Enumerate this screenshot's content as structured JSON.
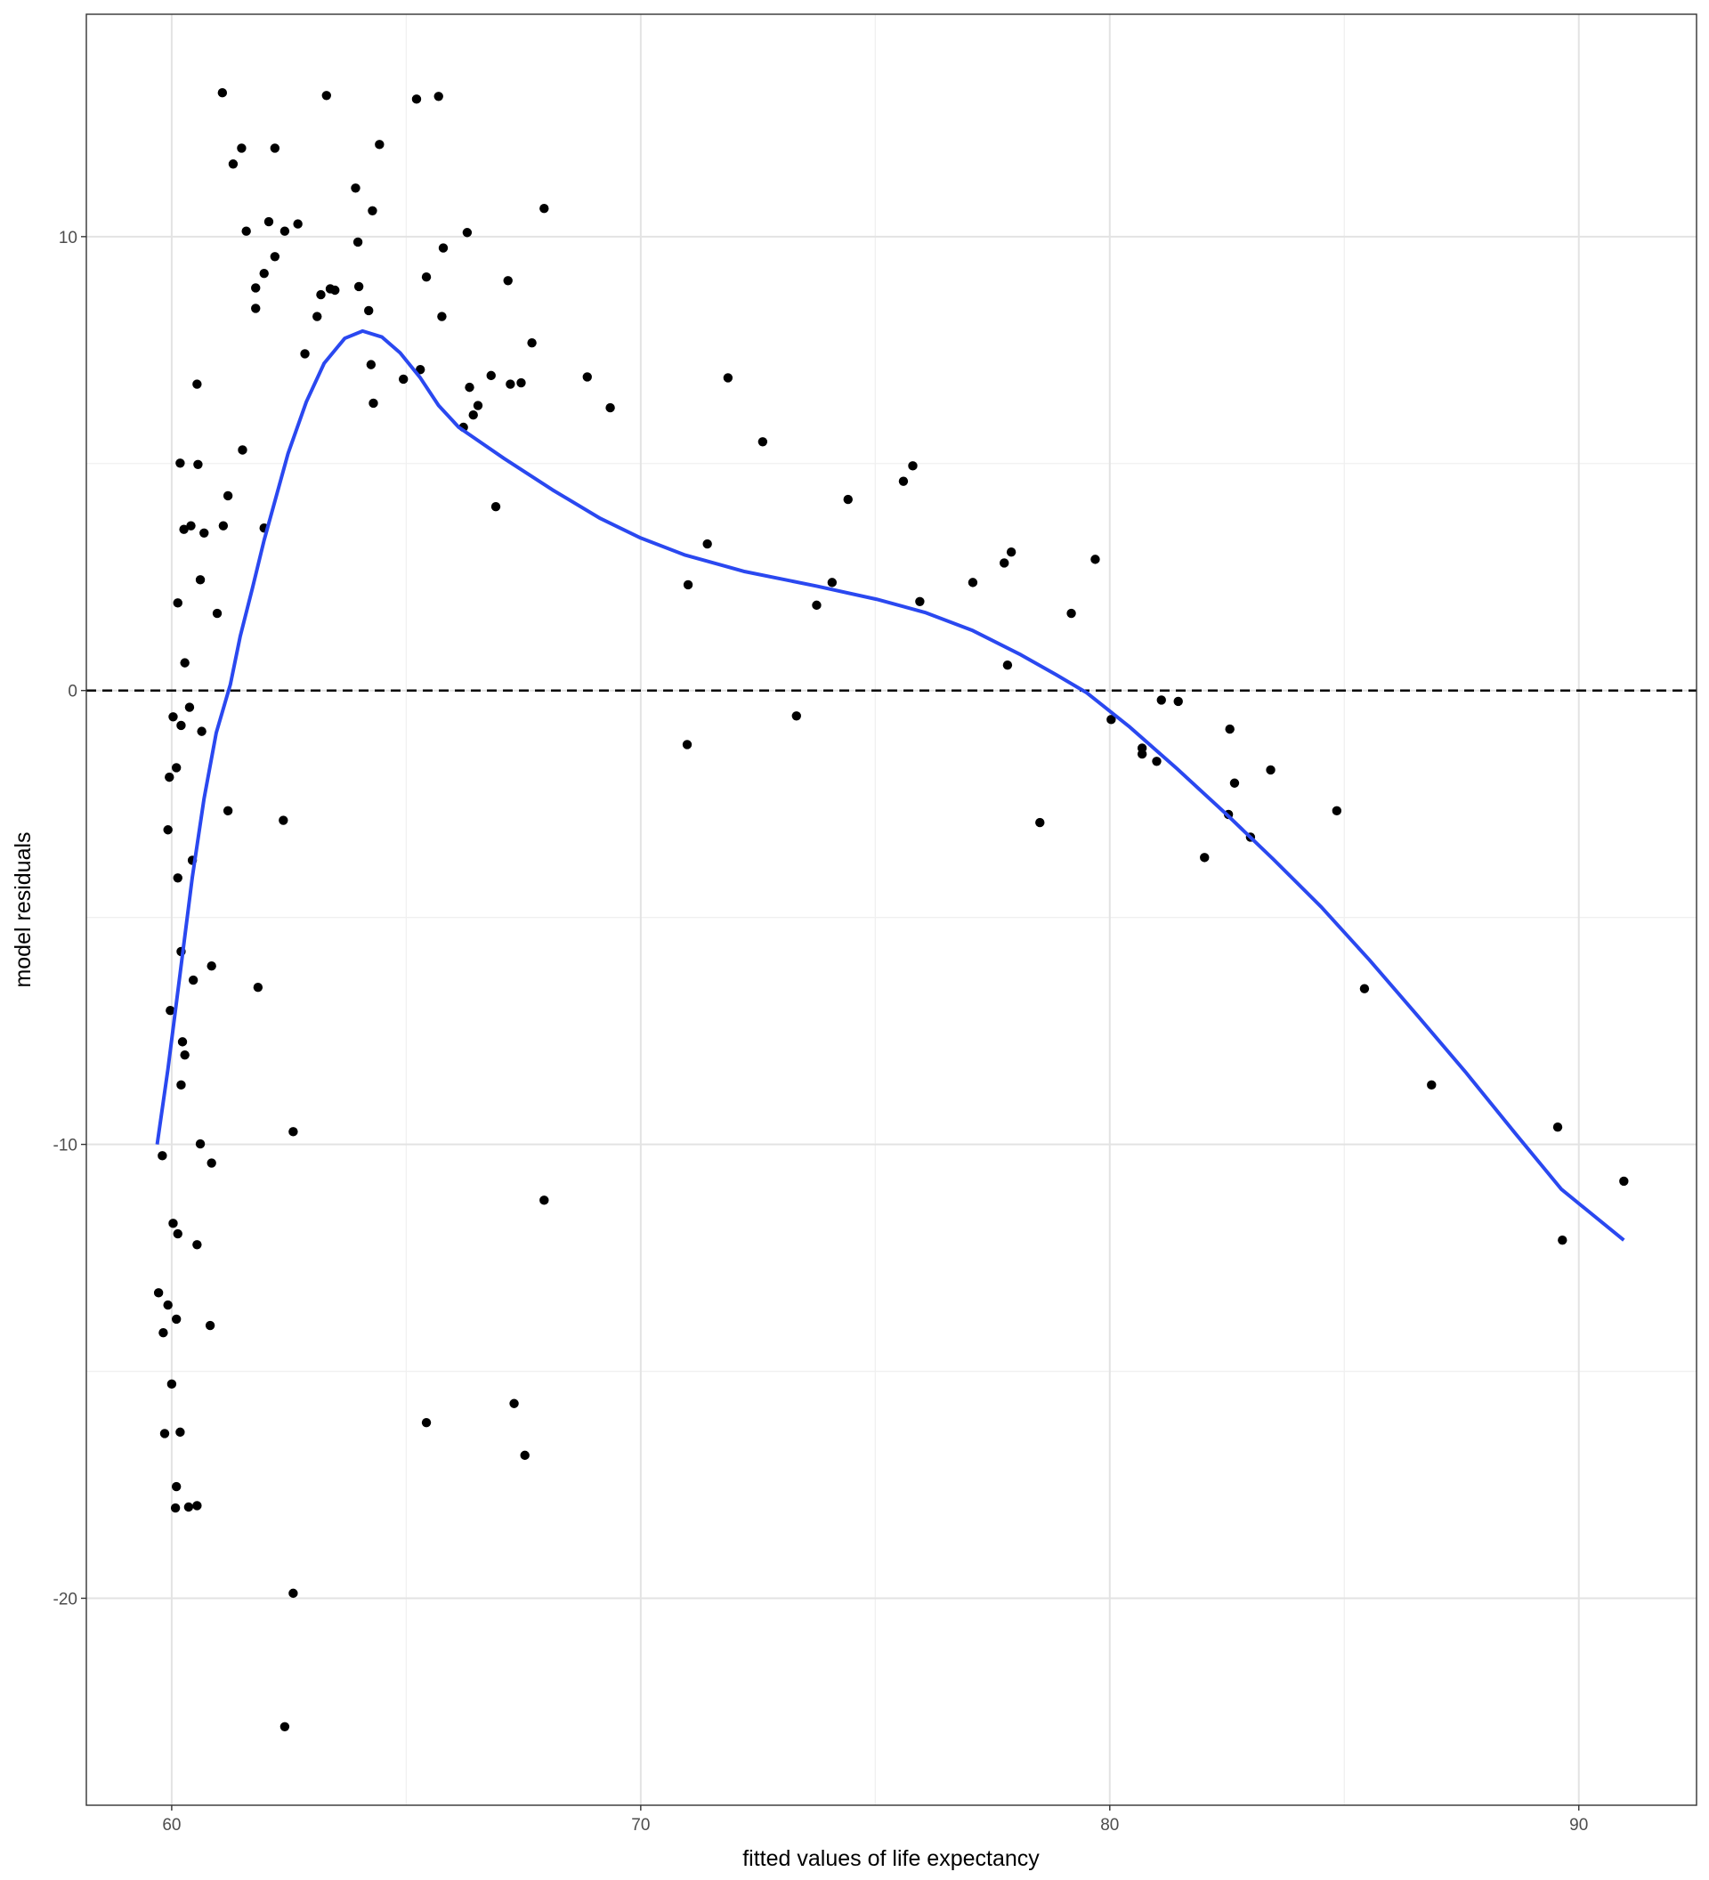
{
  "chart_data": {
    "type": "scatter",
    "x_label": "fitted values of life expectancy",
    "y_label": "model residuals",
    "xlim": [
      58.18,
      92.51
    ],
    "ylim": [
      -24.56,
      14.9
    ],
    "xticks": [
      60,
      70,
      80,
      90
    ],
    "yticks": [
      -20,
      -10,
      0,
      10
    ],
    "minor_xticks": [
      65,
      75,
      85
    ],
    "minor_yticks": [
      -15,
      -5,
      5
    ],
    "grid": true,
    "hline": 0,
    "series": [
      {
        "color": "#000000",
        "x": [
          61.08,
          63.3,
          65.22,
          65.69,
          64.43,
          61.49,
          62.2,
          61.31,
          63.92,
          64.28,
          67.94,
          62.07,
          62.69,
          61.59,
          62.41,
          66.3,
          63.97,
          65.79,
          62.2,
          61.97,
          65.43,
          67.17,
          61.79,
          63.99,
          63.38,
          63.48,
          63.18,
          61.79,
          64.2,
          63.1,
          65.76,
          67.68,
          62.84,
          64.25,
          65.3,
          66.81,
          68.86,
          64.94,
          71.86,
          67.45,
          67.22,
          60.54,
          66.35,
          64.3,
          66.53,
          69.35,
          66.43,
          66.22,
          72.6,
          61.51,
          60.18,
          60.56,
          75.8,
          75.6,
          61.2,
          74.42,
          66.91,
          60.41,
          61.1,
          60.26,
          61.97,
          60.69,
          71.42,
          77.9,
          77.75,
          79.69,
          60.61,
          77.08,
          74.08,
          71.01,
          75.95,
          60.13,
          73.75,
          60.97,
          79.18,
          60.28,
          77.82,
          81.1,
          81.46,
          60.38,
          60.03,
          73.32,
          80.03,
          60.2,
          60.64,
          82.56,
          70.99,
          80.69,
          80.69,
          81.0,
          60.1,
          83.43,
          59.95,
          82.66,
          61.2,
          84.84,
          82.53,
          62.38,
          78.51,
          59.92,
          83.0,
          82.02,
          60.44,
          60.13,
          60.2,
          60.85,
          60.46,
          61.84,
          85.43,
          59.97,
          60.23,
          60.28,
          60.2,
          86.86,
          89.55,
          62.59,
          60.61,
          59.8,
          60.85,
          90.96,
          67.94,
          60.03,
          60.13,
          89.65,
          60.54,
          59.72,
          59.92,
          60.1,
          60.82,
          59.82,
          60.0,
          67.3,
          65.43,
          60.18,
          59.85,
          67.53,
          60.1,
          60.08,
          60.36,
          60.54,
          62.59,
          62.41
        ],
        "values": [
          13.17,
          13.11,
          13.03,
          13.09,
          12.03,
          11.95,
          11.95,
          11.6,
          11.07,
          10.57,
          10.62,
          10.33,
          10.28,
          10.12,
          10.12,
          10.09,
          9.88,
          9.75,
          9.56,
          9.19,
          9.11,
          9.03,
          8.87,
          8.9,
          8.85,
          8.82,
          8.72,
          8.42,
          8.37,
          8.24,
          8.24,
          7.66,
          7.42,
          7.18,
          7.07,
          6.94,
          6.91,
          6.86,
          6.89,
          6.78,
          6.75,
          6.75,
          6.68,
          6.33,
          6.28,
          6.23,
          6.07,
          5.8,
          5.48,
          5.3,
          5.01,
          4.98,
          4.95,
          4.61,
          4.29,
          4.21,
          4.05,
          3.63,
          3.63,
          3.55,
          3.58,
          3.47,
          3.23,
          3.05,
          2.81,
          2.89,
          2.44,
          2.38,
          2.38,
          2.33,
          1.96,
          1.93,
          1.88,
          1.7,
          1.7,
          0.61,
          0.56,
          -0.21,
          -0.24,
          -0.37,
          -0.58,
          -0.56,
          -0.64,
          -0.77,
          -0.9,
          -0.85,
          -1.19,
          -1.27,
          -1.4,
          -1.56,
          -1.7,
          -1.75,
          -1.91,
          -2.04,
          -2.65,
          -2.65,
          -2.73,
          -2.86,
          -2.91,
          -3.07,
          -3.23,
          -3.68,
          -3.74,
          -4.13,
          -5.75,
          -6.07,
          -6.38,
          -6.54,
          -6.57,
          -7.05,
          -7.74,
          -8.03,
          -8.69,
          -8.69,
          -9.62,
          -9.72,
          -9.99,
          -10.25,
          -10.41,
          -10.81,
          -11.23,
          -11.74,
          -11.97,
          -12.11,
          -12.21,
          -13.27,
          -13.54,
          -13.85,
          -13.99,
          -14.15,
          -15.28,
          -15.71,
          -16.13,
          -16.34,
          -16.37,
          -16.85,
          -17.54,
          -18.01,
          -17.99,
          -17.96,
          -19.89,
          -22.83
        ]
      }
    ],
    "smooth_line": {
      "color": "#2a48f0",
      "x": [
        59.69,
        59.92,
        60.18,
        60.44,
        60.69,
        60.95,
        61.25,
        61.46,
        61.72,
        61.97,
        62.48,
        62.87,
        63.25,
        63.69,
        64.07,
        64.48,
        64.87,
        65.3,
        65.69,
        66.12,
        67.09,
        68.12,
        69.14,
        70.0,
        70.93,
        72.22,
        73.75,
        75.03,
        76.06,
        77.08,
        78.1,
        78.87,
        79.51,
        80.41,
        81.43,
        82.46,
        83.48,
        84.51,
        85.53,
        86.55,
        87.58,
        88.6,
        89.63,
        90.96
      ],
      "values": [
        -10.0,
        -8.34,
        -6.23,
        -4.11,
        -2.38,
        -0.93,
        0.13,
        1.19,
        2.25,
        3.31,
        5.22,
        6.36,
        7.21,
        7.76,
        7.92,
        7.79,
        7.44,
        6.89,
        6.28,
        5.8,
        5.11,
        4.42,
        3.79,
        3.36,
        2.99,
        2.62,
        2.3,
        2.01,
        1.72,
        1.32,
        0.79,
        0.34,
        -0.05,
        -0.79,
        -1.72,
        -2.7,
        -3.71,
        -4.77,
        -5.93,
        -7.15,
        -8.4,
        -9.7,
        -10.99,
        -12.11
      ]
    }
  }
}
